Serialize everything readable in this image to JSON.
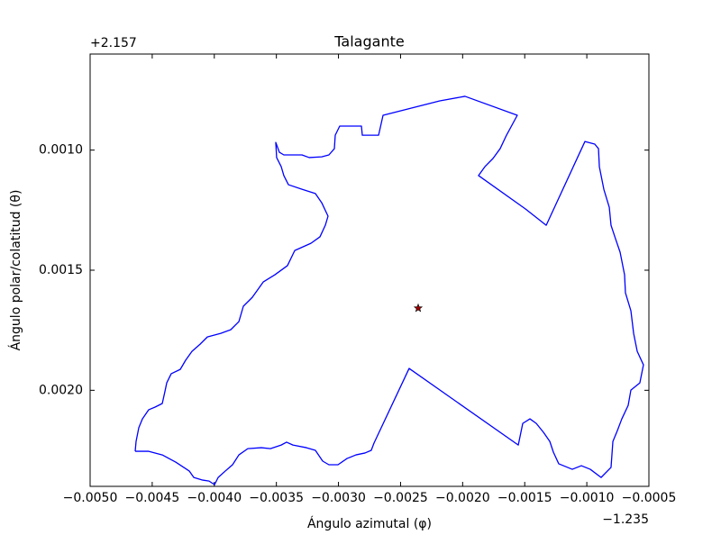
{
  "chart_data": {
    "type": "line",
    "title": "Talagante",
    "xlabel": "Ángulo azimutal (φ)",
    "ylabel": "Ángulo polar/colatitud (θ)",
    "x_offset_label": "−1.235",
    "y_offset_label": "+2.157",
    "xlim": [
      -0.005,
      -0.0005
    ],
    "ylim": [
      0.0024,
      0.0006
    ],
    "xticks": [
      {
        "value": -0.005,
        "label": "−0.0050"
      },
      {
        "value": -0.0045,
        "label": "−0.0045"
      },
      {
        "value": -0.004,
        "label": "−0.0040"
      },
      {
        "value": -0.0035,
        "label": "−0.0035"
      },
      {
        "value": -0.003,
        "label": "−0.0030"
      },
      {
        "value": -0.0025,
        "label": "−0.0025"
      },
      {
        "value": -0.002,
        "label": "−0.0020"
      },
      {
        "value": -0.0015,
        "label": "−0.0015"
      },
      {
        "value": -0.001,
        "label": "−0.0010"
      },
      {
        "value": -0.0005,
        "label": "−0.0005"
      }
    ],
    "yticks": [
      {
        "value": 0.001,
        "label": "0.0010"
      },
      {
        "value": 0.0015,
        "label": "0.0015"
      },
      {
        "value": 0.002,
        "label": "0.0020"
      }
    ],
    "series": [
      {
        "color": "#0000ff",
        "x": [
          -0.004637,
          -0.004528,
          -0.004419,
          -0.004311,
          -0.004202,
          -0.004165,
          -0.004093,
          -0.004042,
          -0.003998,
          -0.003969,
          -0.003911,
          -0.003853,
          -0.003802,
          -0.00373,
          -0.003621,
          -0.003548,
          -0.003461,
          -0.003418,
          -0.003367,
          -0.003258,
          -0.003186,
          -0.003127,
          -0.003077,
          -0.003004,
          -0.002931,
          -0.002859,
          -0.002786,
          -0.002736,
          -0.002714,
          -0.002431,
          -0.001552,
          -0.001516,
          -0.001458,
          -0.001407,
          -0.001349,
          -0.001298,
          -0.001269,
          -0.001226,
          -0.001117,
          -0.001044,
          -0.000972,
          -0.000885,
          -0.000805,
          -0.00079,
          -0.000754,
          -0.000718,
          -0.000667,
          -0.000645,
          -0.000573,
          -0.000544,
          -0.000594,
          -0.000623,
          -0.000645,
          -0.000689,
          -0.000696,
          -0.000732,
          -0.000769,
          -0.000805,
          -0.000819,
          -0.000863,
          -0.000899,
          -0.000906,
          -0.000936,
          -0.001015,
          -0.001327,
          -0.001494,
          -0.001872,
          -0.001821,
          -0.001756,
          -0.001698,
          -0.001647,
          -0.00156,
          -0.001981,
          -0.002184,
          -0.002641,
          -0.002677,
          -0.002808,
          -0.002815,
          -0.00299,
          -0.003026,
          -0.003033,
          -0.003077,
          -0.003135,
          -0.003236,
          -0.003294,
          -0.00344,
          -0.003476,
          -0.003505,
          -0.003498,
          -0.003461,
          -0.00344,
          -0.003403,
          -0.003294,
          -0.003186,
          -0.003135,
          -0.003084,
          -0.003106,
          -0.003149,
          -0.003222,
          -0.003352,
          -0.003411,
          -0.003512,
          -0.003606,
          -0.003694,
          -0.003766,
          -0.003802,
          -0.003868,
          -0.003948,
          -0.004056,
          -0.004114,
          -0.00418,
          -0.004231,
          -0.004274,
          -0.004347,
          -0.004383,
          -0.004398,
          -0.004419,
          -0.004477,
          -0.004528,
          -0.004579,
          -0.004608,
          -0.00463,
          -0.004637
        ],
        "values": [
          0.002254,
          0.002254,
          0.002269,
          0.002299,
          0.002336,
          0.002363,
          0.002374,
          0.002378,
          0.002393,
          0.002363,
          0.002336,
          0.00231,
          0.002269,
          0.002243,
          0.002239,
          0.002243,
          0.002228,
          0.002216,
          0.002228,
          0.002239,
          0.00225,
          0.002295,
          0.00231,
          0.00231,
          0.002284,
          0.002269,
          0.002261,
          0.00225,
          0.00222,
          0.001909,
          0.002228,
          0.002138,
          0.002119,
          0.002138,
          0.002175,
          0.002213,
          0.002258,
          0.002306,
          0.002329,
          0.002314,
          0.002329,
          0.002363,
          0.002321,
          0.002213,
          0.002168,
          0.002119,
          0.002063,
          0.001999,
          0.001969,
          0.001894,
          0.001838,
          0.001763,
          0.001669,
          0.001594,
          0.001519,
          0.001425,
          0.001369,
          0.001313,
          0.001238,
          0.001163,
          0.001069,
          0.000994,
          0.000975,
          0.000964,
          0.001313,
          0.001245,
          0.001106,
          0.001069,
          0.001035,
          0.000994,
          0.000938,
          0.000855,
          0.000776,
          0.000795,
          0.000855,
          0.000938,
          0.000938,
          0.0009,
          0.0009,
          0.000938,
          0.000994,
          0.00102,
          0.001028,
          0.001031,
          0.00102,
          0.00102,
          0.001009,
          0.000968,
          0.001031,
          0.001069,
          0.001106,
          0.001144,
          0.001163,
          0.001181,
          0.001219,
          0.001275,
          0.001313,
          0.001361,
          0.001388,
          0.001418,
          0.001481,
          0.001519,
          0.001549,
          0.001613,
          0.00165,
          0.001714,
          0.001748,
          0.001763,
          0.001778,
          0.001808,
          0.001838,
          0.001875,
          0.001913,
          0.001931,
          0.001969,
          0.002006,
          0.002055,
          0.00207,
          0.002081,
          0.002119,
          0.002156,
          0.002213,
          0.002254
        ]
      }
    ],
    "star": {
      "x": -0.002358,
      "y": 0.001658,
      "color": "#a00000"
    }
  }
}
